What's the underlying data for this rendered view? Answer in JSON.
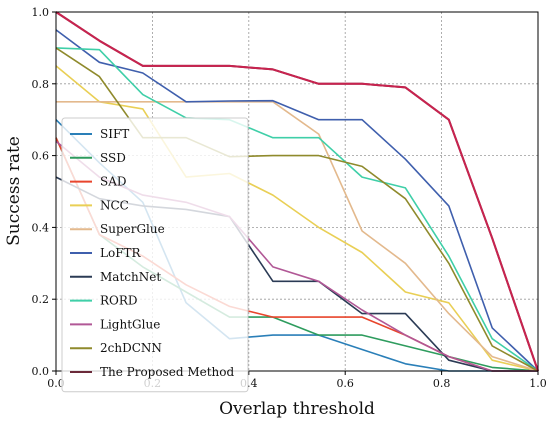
{
  "chart_data": {
    "type": "line",
    "xlabel": "Overlap threshold",
    "ylabel": "Success rate",
    "xlim": [
      0,
      1
    ],
    "ylim": [
      0,
      1
    ],
    "xticks": [
      0,
      0.2,
      0.4,
      0.6,
      0.8,
      1
    ],
    "yticks": [
      0,
      0.2,
      0.4,
      0.6,
      0.8,
      1
    ],
    "xtick_labels": [
      "0.0",
      "0.2",
      "0.4",
      "0.6",
      "0.8",
      "1.0"
    ],
    "ytick_labels": [
      "0.0",
      "0.2",
      "0.4",
      "0.6",
      "0.8",
      "1.0"
    ],
    "grid": true,
    "legend_position": "center-left",
    "x": [
      0,
      0.09,
      0.18,
      0.27,
      0.36,
      0.45,
      0.545,
      0.635,
      0.725,
      0.815,
      0.905,
      1.0
    ],
    "series": [
      {
        "name": "SIFT",
        "color": "#2a7fb8",
        "values": [
          0.7,
          0.58,
          0.47,
          0.19,
          0.09,
          0.1,
          0.1,
          0.06,
          0.02,
          0.0,
          0.0,
          0.0
        ]
      },
      {
        "name": "SSD",
        "color": "#2e9c5e",
        "values": [
          0.65,
          0.38,
          0.29,
          0.22,
          0.15,
          0.15,
          0.1,
          0.1,
          0.07,
          0.04,
          0.01,
          0.0
        ]
      },
      {
        "name": "SAD",
        "color": "#e8452c",
        "values": [
          0.65,
          0.38,
          0.32,
          0.24,
          0.18,
          0.15,
          0.15,
          0.15,
          0.1,
          0.04,
          0.0,
          0.0
        ]
      },
      {
        "name": "NCC",
        "color": "#e9cf55",
        "values": [
          0.85,
          0.75,
          0.73,
          0.54,
          0.55,
          0.49,
          0.4,
          0.33,
          0.22,
          0.19,
          0.03,
          0.0
        ]
      },
      {
        "name": "SuperGlue",
        "color": "#e3b98d",
        "values": [
          0.75,
          0.75,
          0.75,
          0.75,
          0.75,
          0.75,
          0.66,
          0.39,
          0.3,
          0.16,
          0.04,
          0.0
        ]
      },
      {
        "name": "LoFTR",
        "color": "#3f5fad",
        "values": [
          0.95,
          0.86,
          0.83,
          0.75,
          0.752,
          0.753,
          0.7,
          0.7,
          0.59,
          0.46,
          0.12,
          0.0
        ]
      },
      {
        "name": "MatchNet",
        "color": "#2b3b55",
        "values": [
          0.54,
          0.48,
          0.46,
          0.45,
          0.43,
          0.25,
          0.25,
          0.16,
          0.16,
          0.03,
          0.0,
          0.0
        ]
      },
      {
        "name": "RORD",
        "color": "#3fcfa8",
        "values": [
          0.9,
          0.895,
          0.77,
          0.705,
          0.7,
          0.65,
          0.65,
          0.54,
          0.51,
          0.32,
          0.09,
          0.0
        ]
      },
      {
        "name": "LightGlue",
        "color": "#b15896",
        "values": [
          0.64,
          0.54,
          0.49,
          0.47,
          0.43,
          0.29,
          0.25,
          0.17,
          0.1,
          0.04,
          0.0,
          0.0
        ]
      },
      {
        "name": "2chDCNN",
        "color": "#8f8a2c",
        "values": [
          0.9,
          0.82,
          0.65,
          0.65,
          0.597,
          0.6,
          0.6,
          0.57,
          0.48,
          0.3,
          0.07,
          0.0
        ]
      },
      {
        "name": "The Proposed Method",
        "color": "#6b2a3a",
        "values": [
          1.0,
          0.92,
          0.85,
          0.85,
          0.85,
          0.84,
          0.8,
          0.8,
          0.79,
          0.7,
          0.37,
          0.0
        ]
      }
    ],
    "highlight_color": "#c8234f"
  }
}
